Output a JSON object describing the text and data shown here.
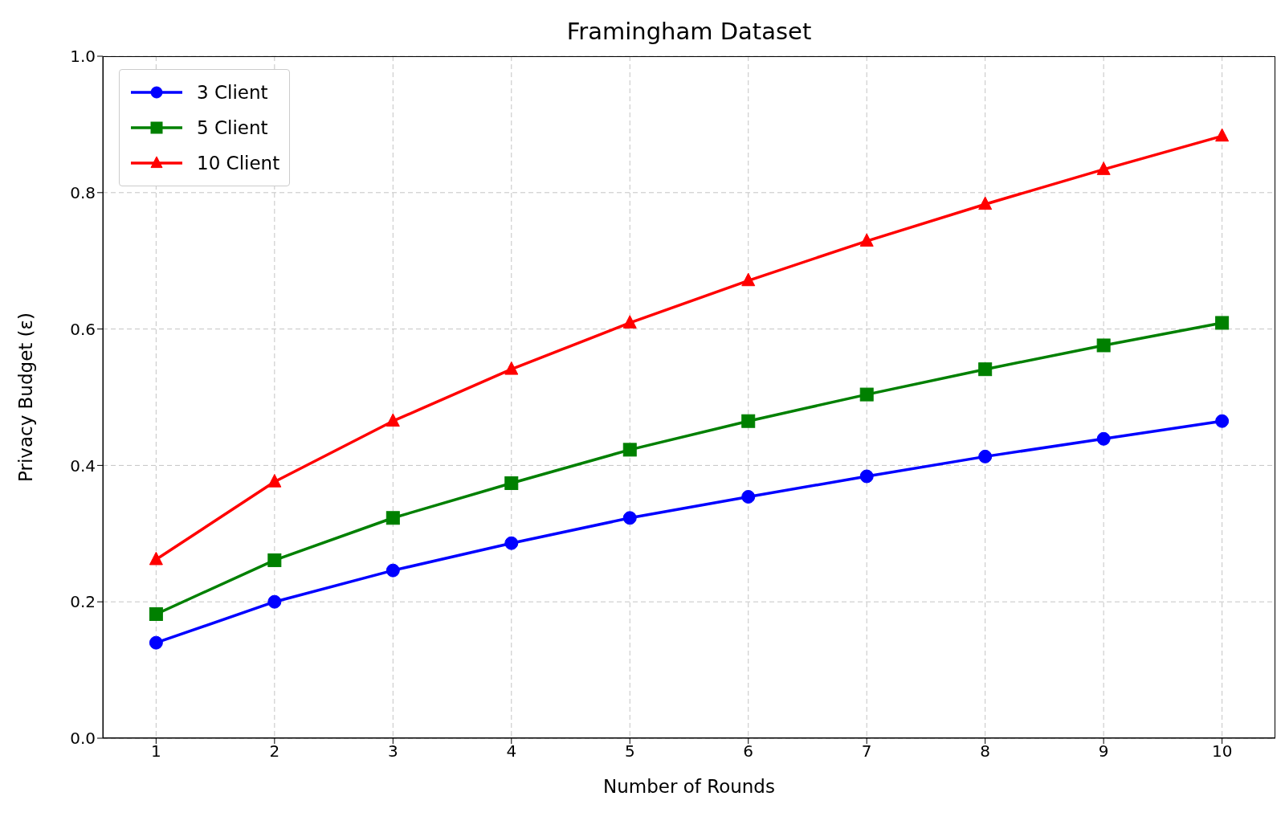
{
  "chart_data": {
    "type": "line",
    "title": "Framingham Dataset",
    "xlabel": "Number of Rounds",
    "ylabel": "Privacy Budget (ε)",
    "x": [
      1,
      2,
      3,
      4,
      5,
      6,
      7,
      8,
      9,
      10
    ],
    "series": [
      {
        "name": "3 Client",
        "color": "#0000ff",
        "marker": "circle",
        "values": [
          0.14,
          0.2,
          0.246,
          0.286,
          0.323,
          0.354,
          0.384,
          0.413,
          0.439,
          0.465
        ]
      },
      {
        "name": "5 Client",
        "color": "#008000",
        "marker": "square",
        "values": [
          0.182,
          0.261,
          0.323,
          0.374,
          0.423,
          0.465,
          0.504,
          0.541,
          0.576,
          0.609
        ]
      },
      {
        "name": "10 Client",
        "color": "#ff0000",
        "marker": "triangle",
        "values": [
          0.262,
          0.376,
          0.465,
          0.541,
          0.609,
          0.671,
          0.729,
          0.783,
          0.834,
          0.883
        ]
      }
    ],
    "xlim": [
      0.55,
      10.45
    ],
    "xticks": [
      1,
      2,
      3,
      4,
      5,
      6,
      7,
      8,
      9,
      10
    ],
    "ylim": [
      0,
      1
    ],
    "yticks": [
      {
        "value": 0,
        "label": "0.0"
      },
      {
        "value": 0.2,
        "label": "0.2"
      },
      {
        "value": 0.4,
        "label": "0.4"
      },
      {
        "value": 0.6,
        "label": "0.6"
      },
      {
        "value": 0.8,
        "label": "0.8"
      },
      {
        "value": 1,
        "label": "1.0"
      }
    ],
    "grid": true,
    "legend": "top left",
    "line_style": "solid"
  }
}
